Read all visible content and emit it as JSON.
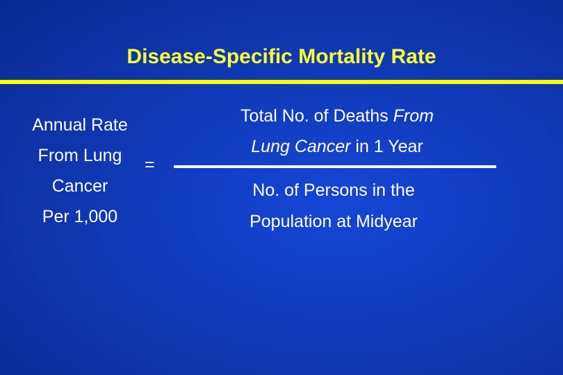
{
  "slide": {
    "title": "Disease-Specific Mortality Rate",
    "lhs_lines": [
      "Annual Rate",
      "From Lung",
      "Cancer",
      "Per 1,000"
    ],
    "equals": "=",
    "numerator": {
      "line1_plain": "Total No. of Deaths ",
      "line1_italic": "From",
      "line2_italic": "Lung Cancer",
      "line2_plain": " in 1 Year"
    },
    "denominator_lines": [
      "No. of Persons  in the",
      "Population at Midyear"
    ]
  },
  "colors": {
    "background": "#0f3ab8",
    "title": "#ffff33",
    "rule": "#ffff00",
    "text": "#ffffff"
  }
}
